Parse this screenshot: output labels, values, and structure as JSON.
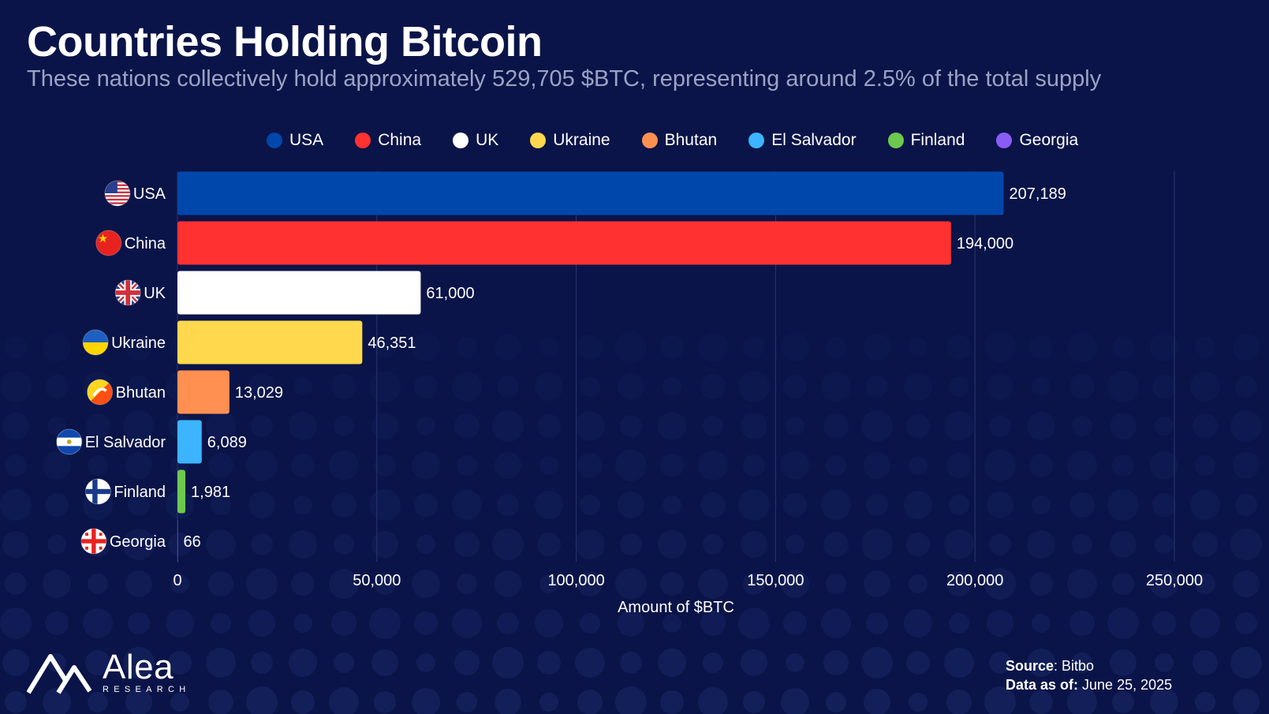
{
  "header": {
    "title": "Countries Holding Bitcoin",
    "subtitle": "These nations collectively hold approximately 529,705 $BTC, representing around 2.5% of the total supply"
  },
  "legend": [
    {
      "label": "USA",
      "color": "#0047ab"
    },
    {
      "label": "China",
      "color": "#ff3131"
    },
    {
      "label": "UK",
      "color": "#ffffff"
    },
    {
      "label": "Ukraine",
      "color": "#ffd84d"
    },
    {
      "label": "Bhutan",
      "color": "#ff9052"
    },
    {
      "label": "El Salvador",
      "color": "#3cb4ff"
    },
    {
      "label": "Finland",
      "color": "#6cc94e"
    },
    {
      "label": "Georgia",
      "color": "#8a5cf6"
    }
  ],
  "chart_data": {
    "type": "bar",
    "orientation": "horizontal",
    "title": "Countries Holding Bitcoin",
    "xlabel": "Amount of $BTC",
    "ylabel": "",
    "xlim": [
      0,
      250000
    ],
    "x_ticks": [
      0,
      50000,
      100000,
      150000,
      200000,
      250000
    ],
    "x_tick_labels": [
      "0",
      "50,000",
      "100,000",
      "150,000",
      "200,000",
      "250,000"
    ],
    "grid": true,
    "categories": [
      "USA",
      "China",
      "UK",
      "Ukraine",
      "Bhutan",
      "El Salvador",
      "Finland",
      "Georgia"
    ],
    "values": [
      207189,
      194000,
      61000,
      46351,
      13029,
      6089,
      1981,
      66
    ],
    "value_labels": [
      "207,189",
      "194,000",
      "61,000",
      "46,351",
      "13,029",
      "6,089",
      "1,981",
      "66"
    ],
    "colors": [
      "#0047ab",
      "#ff3131",
      "#ffffff",
      "#ffd84d",
      "#ff9052",
      "#3cb4ff",
      "#6cc94e",
      "#8a5cf6"
    ],
    "flags": [
      "usa-flag-icon",
      "china-flag-icon",
      "uk-flag-icon",
      "ukraine-flag-icon",
      "bhutan-flag-icon",
      "el-salvador-flag-icon",
      "finland-flag-icon",
      "georgia-flag-icon"
    ]
  },
  "footer": {
    "source_label": "Source",
    "source_value": ": Bitbo",
    "date_label": "Data as of:",
    "date_value": " June 25, 2025",
    "logo_name": "Alea",
    "logo_sub": "RESEARCH",
    "logo_icon": "alea-logo-icon"
  },
  "colors": {
    "background": "#0a1448",
    "grid": "#2a3570",
    "text": "#ffffff",
    "subtitle": "#9aa3c4"
  }
}
